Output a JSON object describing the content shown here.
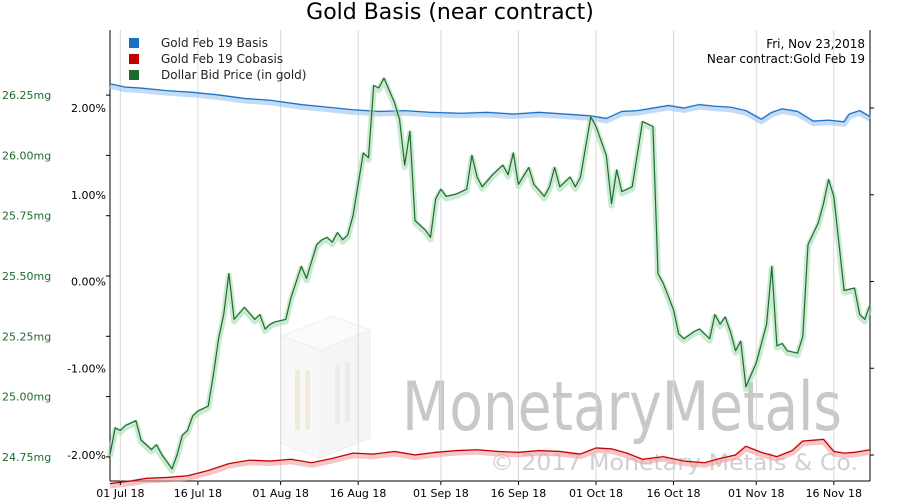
{
  "chart_data": {
    "type": "line",
    "title": "Gold Basis (near contract)",
    "info": {
      "date": "Fri, Nov 23,2018",
      "contract": "Near contract:Gold Feb 19"
    },
    "watermark": {
      "brand": "MonetaryMetals",
      "copyright": "© 2017 Monetary Metals & Co."
    },
    "x_labels": [
      "01 Jul 18",
      "16 Jul 18",
      "01 Aug 18",
      "16 Aug 18",
      "01 Sep 18",
      "16 Sep 18",
      "01 Oct 18",
      "16 Oct 18",
      "01 Nov 18",
      "16 Nov 18"
    ],
    "x_dates": [
      "2018-07-01",
      "2018-07-16",
      "2018-08-01",
      "2018-08-16",
      "2018-09-01",
      "2018-09-16",
      "2018-10-01",
      "2018-10-16",
      "2018-11-01",
      "2018-11-16"
    ],
    "x_range": [
      "2018-06-29",
      "2018-11-23"
    ],
    "left_axis": {
      "ticks": [
        "26.25mg",
        "26.00mg",
        "25.75mg",
        "25.50mg",
        "25.25mg",
        "25.00mg",
        "24.75mg"
      ],
      "values": [
        26.25,
        26.0,
        25.75,
        25.5,
        25.25,
        25.0,
        24.75
      ],
      "range": [
        24.65,
        26.52
      ],
      "color": "#1f6b2e"
    },
    "right_axis": {
      "ticks": [
        "2.00%",
        "1.00%",
        "0.00%",
        "-1.00%",
        "-2.00%"
      ],
      "values": [
        2.0,
        1.0,
        0.0,
        -1.0,
        -2.0
      ],
      "range": [
        -2.3,
        2.9
      ]
    },
    "legend": [
      {
        "label": "Gold Feb 19 Basis",
        "color": "#1a6fc4"
      },
      {
        "label": "Gold Feb 19 Cobasis",
        "color": "#c00000"
      },
      {
        "label": "Dollar Bid Price (in gold)",
        "color": "#1e6b2e"
      }
    ],
    "series": [
      {
        "name": "Gold Feb 19 Basis",
        "axis": "right",
        "color": "#1a6fc4",
        "glow": "#9cc3ee",
        "points": [
          [
            "2018-06-29",
            2.28
          ],
          [
            "2018-07-02",
            2.24
          ],
          [
            "2018-07-05",
            2.23
          ],
          [
            "2018-07-10",
            2.2
          ],
          [
            "2018-07-15",
            2.18
          ],
          [
            "2018-07-20",
            2.15
          ],
          [
            "2018-07-25",
            2.11
          ],
          [
            "2018-07-30",
            2.09
          ],
          [
            "2018-08-05",
            2.04
          ],
          [
            "2018-08-10",
            2.01
          ],
          [
            "2018-08-15",
            1.98
          ],
          [
            "2018-08-20",
            1.96
          ],
          [
            "2018-08-25",
            1.97
          ],
          [
            "2018-08-30",
            1.95
          ],
          [
            "2018-09-05",
            1.94
          ],
          [
            "2018-09-10",
            1.95
          ],
          [
            "2018-09-15",
            1.93
          ],
          [
            "2018-09-20",
            1.95
          ],
          [
            "2018-09-25",
            1.93
          ],
          [
            "2018-09-30",
            1.91
          ],
          [
            "2018-10-03",
            1.88
          ],
          [
            "2018-10-06",
            1.96
          ],
          [
            "2018-10-09",
            1.97
          ],
          [
            "2018-10-12",
            2.0
          ],
          [
            "2018-10-15",
            2.03
          ],
          [
            "2018-10-18",
            2.0
          ],
          [
            "2018-10-21",
            2.04
          ],
          [
            "2018-10-24",
            2.02
          ],
          [
            "2018-10-27",
            2.01
          ],
          [
            "2018-10-30",
            1.97
          ],
          [
            "2018-11-02",
            1.87
          ],
          [
            "2018-11-04",
            1.95
          ],
          [
            "2018-11-06",
            1.99
          ],
          [
            "2018-11-09",
            1.96
          ],
          [
            "2018-11-12",
            1.85
          ],
          [
            "2018-11-15",
            1.86
          ],
          [
            "2018-11-18",
            1.84
          ],
          [
            "2018-11-19",
            1.93
          ],
          [
            "2018-11-21",
            1.97
          ],
          [
            "2018-11-23",
            1.9
          ]
        ]
      },
      {
        "name": "Gold Feb 19 Cobasis",
        "axis": "right",
        "color": "#c00000",
        "glow": "#f0a0a0",
        "points": [
          [
            "2018-06-29",
            -2.33
          ],
          [
            "2018-07-03",
            -2.3
          ],
          [
            "2018-07-06",
            -2.27
          ],
          [
            "2018-07-10",
            -2.26
          ],
          [
            "2018-07-14",
            -2.24
          ],
          [
            "2018-07-18",
            -2.18
          ],
          [
            "2018-07-22",
            -2.1
          ],
          [
            "2018-07-26",
            -2.06
          ],
          [
            "2018-07-30",
            -2.07
          ],
          [
            "2018-08-03",
            -2.05
          ],
          [
            "2018-08-07",
            -2.09
          ],
          [
            "2018-08-11",
            -2.04
          ],
          [
            "2018-08-15",
            -1.98
          ],
          [
            "2018-08-19",
            -1.99
          ],
          [
            "2018-08-23",
            -1.96
          ],
          [
            "2018-08-27",
            -2.0
          ],
          [
            "2018-08-31",
            -1.97
          ],
          [
            "2018-09-04",
            -1.95
          ],
          [
            "2018-09-08",
            -1.94
          ],
          [
            "2018-09-12",
            -1.96
          ],
          [
            "2018-09-16",
            -1.97
          ],
          [
            "2018-09-20",
            -1.95
          ],
          [
            "2018-09-24",
            -1.96
          ],
          [
            "2018-09-28",
            -1.99
          ],
          [
            "2018-10-01",
            -1.92
          ],
          [
            "2018-10-04",
            -1.93
          ],
          [
            "2018-10-07",
            -1.98
          ],
          [
            "2018-10-10",
            -2.05
          ],
          [
            "2018-10-14",
            -2.02
          ],
          [
            "2018-10-18",
            -2.07
          ],
          [
            "2018-10-22",
            -2.09
          ],
          [
            "2018-10-25",
            -2.04
          ],
          [
            "2018-10-28",
            -2.0
          ],
          [
            "2018-10-30",
            -1.9
          ],
          [
            "2018-11-02",
            -1.97
          ],
          [
            "2018-11-05",
            -2.02
          ],
          [
            "2018-11-08",
            -1.95
          ],
          [
            "2018-11-10",
            -1.84
          ],
          [
            "2018-11-14",
            -1.82
          ],
          [
            "2018-11-16",
            -1.96
          ],
          [
            "2018-11-18",
            -1.98
          ],
          [
            "2018-11-20",
            -1.97
          ],
          [
            "2018-11-23",
            -1.94
          ]
        ]
      },
      {
        "name": "Dollar Bid Price (in gold)",
        "axis": "left",
        "color": "#1e6b2e",
        "glow": "#a8dcb4",
        "points": [
          [
            "2018-06-29",
            24.76
          ],
          [
            "2018-06-30",
            24.87
          ],
          [
            "2018-07-01",
            24.86
          ],
          [
            "2018-07-02",
            24.88
          ],
          [
            "2018-07-04",
            24.9
          ],
          [
            "2018-07-05",
            24.82
          ],
          [
            "2018-07-07",
            24.78
          ],
          [
            "2018-07-08",
            24.8
          ],
          [
            "2018-07-09",
            24.76
          ],
          [
            "2018-07-10",
            24.73
          ],
          [
            "2018-07-11",
            24.7
          ],
          [
            "2018-07-12",
            24.76
          ],
          [
            "2018-07-13",
            24.84
          ],
          [
            "2018-07-14",
            24.86
          ],
          [
            "2018-07-15",
            24.92
          ],
          [
            "2018-07-16",
            24.94
          ],
          [
            "2018-07-18",
            24.96
          ],
          [
            "2018-07-19",
            25.09
          ],
          [
            "2018-07-20",
            25.24
          ],
          [
            "2018-07-21",
            25.34
          ],
          [
            "2018-07-22",
            25.51
          ],
          [
            "2018-07-23",
            25.32
          ],
          [
            "2018-07-25",
            25.37
          ],
          [
            "2018-07-27",
            25.32
          ],
          [
            "2018-07-28",
            25.34
          ],
          [
            "2018-07-29",
            25.28
          ],
          [
            "2018-07-30",
            25.3
          ],
          [
            "2018-07-31",
            25.31
          ],
          [
            "2018-08-02",
            25.32
          ],
          [
            "2018-08-03",
            25.41
          ],
          [
            "2018-08-05",
            25.54
          ],
          [
            "2018-08-06",
            25.49
          ],
          [
            "2018-08-07",
            25.56
          ],
          [
            "2018-08-08",
            25.63
          ],
          [
            "2018-08-09",
            25.65
          ],
          [
            "2018-08-10",
            25.66
          ],
          [
            "2018-08-11",
            25.64
          ],
          [
            "2018-08-12",
            25.68
          ],
          [
            "2018-08-13",
            25.65
          ],
          [
            "2018-08-14",
            25.67
          ],
          [
            "2018-08-15",
            25.75
          ],
          [
            "2018-08-17",
            26.01
          ],
          [
            "2018-08-18",
            25.99
          ],
          [
            "2018-08-19",
            26.29
          ],
          [
            "2018-08-20",
            26.28
          ],
          [
            "2018-08-21",
            26.32
          ],
          [
            "2018-08-23",
            26.22
          ],
          [
            "2018-08-24",
            26.15
          ],
          [
            "2018-08-25",
            25.96
          ],
          [
            "2018-08-26",
            26.1
          ],
          [
            "2018-08-27",
            25.73
          ],
          [
            "2018-08-29",
            25.69
          ],
          [
            "2018-08-30",
            25.66
          ],
          [
            "2018-08-31",
            25.82
          ],
          [
            "2018-09-01",
            25.86
          ],
          [
            "2018-09-02",
            25.83
          ],
          [
            "2018-09-04",
            25.84
          ],
          [
            "2018-09-06",
            25.86
          ],
          [
            "2018-09-07",
            26.0
          ],
          [
            "2018-09-08",
            25.91
          ],
          [
            "2018-09-09",
            25.87
          ],
          [
            "2018-09-11",
            25.92
          ],
          [
            "2018-09-13",
            25.96
          ],
          [
            "2018-09-14",
            25.92
          ],
          [
            "2018-09-15",
            26.01
          ],
          [
            "2018-09-16",
            25.88
          ],
          [
            "2018-09-18",
            25.95
          ],
          [
            "2018-09-19",
            25.88
          ],
          [
            "2018-09-21",
            25.83
          ],
          [
            "2018-09-22",
            25.87
          ],
          [
            "2018-09-23",
            25.95
          ],
          [
            "2018-09-24",
            25.87
          ],
          [
            "2018-09-26",
            25.91
          ],
          [
            "2018-09-27",
            25.87
          ],
          [
            "2018-09-28",
            25.91
          ],
          [
            "2018-09-30",
            26.16
          ],
          [
            "2018-10-01",
            26.12
          ],
          [
            "2018-10-03",
            26.0
          ],
          [
            "2018-10-04",
            25.8
          ],
          [
            "2018-10-05",
            25.94
          ],
          [
            "2018-10-06",
            25.85
          ],
          [
            "2018-10-08",
            25.87
          ],
          [
            "2018-10-10",
            26.14
          ],
          [
            "2018-10-12",
            26.12
          ],
          [
            "2018-10-13",
            25.51
          ],
          [
            "2018-10-14",
            25.47
          ],
          [
            "2018-10-16",
            25.36
          ],
          [
            "2018-10-17",
            25.26
          ],
          [
            "2018-10-18",
            25.24
          ],
          [
            "2018-10-20",
            25.27
          ],
          [
            "2018-10-21",
            25.28
          ],
          [
            "2018-10-23",
            25.24
          ],
          [
            "2018-10-24",
            25.34
          ],
          [
            "2018-10-25",
            25.3
          ],
          [
            "2018-10-26",
            25.33
          ],
          [
            "2018-10-27",
            25.27
          ],
          [
            "2018-10-28",
            25.19
          ],
          [
            "2018-10-29",
            25.23
          ],
          [
            "2018-10-30",
            25.04
          ],
          [
            "2018-11-01",
            25.14
          ],
          [
            "2018-11-03",
            25.3
          ],
          [
            "2018-11-04",
            25.54
          ],
          [
            "2018-11-05",
            25.21
          ],
          [
            "2018-11-06",
            25.22
          ],
          [
            "2018-11-07",
            25.19
          ],
          [
            "2018-11-09",
            25.18
          ],
          [
            "2018-11-10",
            25.25
          ],
          [
            "2018-11-11",
            25.63
          ],
          [
            "2018-11-13",
            25.72
          ],
          [
            "2018-11-14",
            25.8
          ],
          [
            "2018-11-15",
            25.9
          ],
          [
            "2018-11-16",
            25.83
          ],
          [
            "2018-11-18",
            25.44
          ],
          [
            "2018-11-20",
            25.45
          ],
          [
            "2018-11-21",
            25.34
          ],
          [
            "2018-11-22",
            25.32
          ],
          [
            "2018-11-23",
            25.38
          ]
        ]
      }
    ]
  }
}
